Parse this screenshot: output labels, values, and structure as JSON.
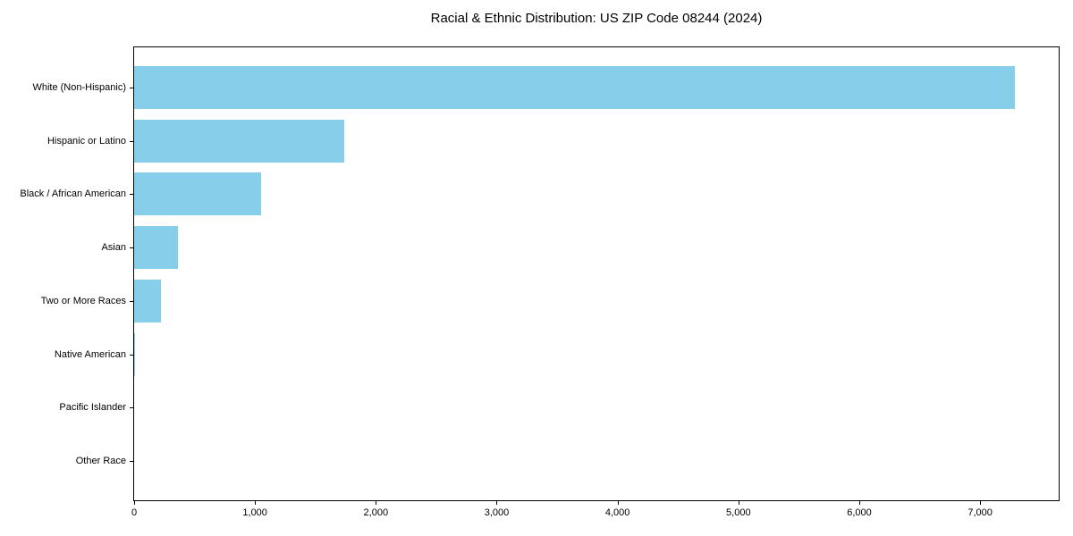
{
  "chart_data": {
    "type": "bar",
    "orientation": "horizontal",
    "title": "Racial & Ethnic Distribution: US ZIP Code 08244 (2024)",
    "categories": [
      "White (Non-Hispanic)",
      "Hispanic or Latino",
      "Black / African American",
      "Asian",
      "Two or More Races",
      "Native American",
      "Pacific Islander",
      "Other Race"
    ],
    "values": [
      7290,
      1740,
      1050,
      360,
      220,
      10,
      0,
      0
    ],
    "xlabel": "",
    "ylabel": "",
    "xlim": [
      0,
      7650
    ],
    "xticks": [
      0,
      1000,
      2000,
      3000,
      4000,
      5000,
      6000,
      7000
    ],
    "xtick_labels": [
      "0",
      "1,000",
      "2,000",
      "3,000",
      "4,000",
      "5,000",
      "6,000",
      "7,000"
    ],
    "bar_color": "#87CEEB",
    "text_color": "#000000",
    "spine_color": "#000000",
    "grid": false,
    "legend": null
  }
}
